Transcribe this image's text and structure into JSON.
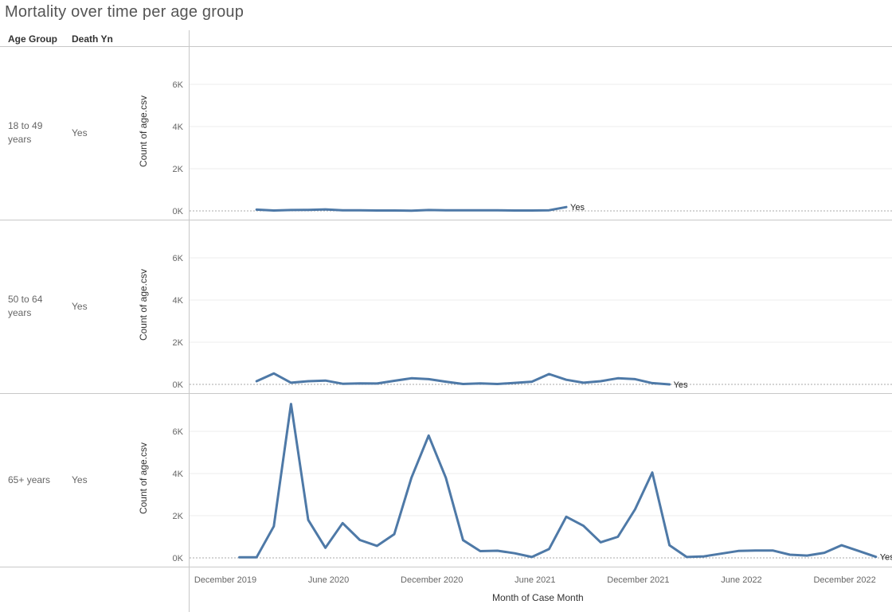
{
  "title": "Mortality over time per age group",
  "headers": {
    "age_group": "Age Group",
    "death_yn": "Death Yn"
  },
  "x_axis_title": "Month of Case Month",
  "colors": {
    "line": "#4e79a7",
    "grid": "#eeeeee",
    "zero": "#aaaaaa",
    "divider": "#c8c8c8"
  },
  "chart_data": {
    "type": "line",
    "title": "Mortality over time per age group",
    "xlabel": "Month of Case Month",
    "ylabel": "Count of age.csv",
    "ylim": [
      0,
      7500
    ],
    "y_ticks": [
      0,
      2000,
      4000,
      6000
    ],
    "y_tick_labels": [
      "0K",
      "2K",
      "4K",
      "6K"
    ],
    "x_ticks": [
      "2019-12",
      "2020-06",
      "2020-12",
      "2021-06",
      "2021-12",
      "2022-06",
      "2022-12"
    ],
    "x_tick_labels": [
      "December 2019",
      "June 2020",
      "December 2020",
      "June 2021",
      "December 2021",
      "June 2022",
      "December 2022"
    ],
    "x_range": [
      "2019-12",
      "2023-01"
    ],
    "grid": true,
    "panels": [
      {
        "age_group": "18 to 49 years",
        "death_yn": "Yes",
        "series_label": "Yes",
        "x": [
          "2020-02",
          "2020-03",
          "2020-04",
          "2020-05",
          "2020-06",
          "2020-07",
          "2020-08",
          "2020-09",
          "2020-10",
          "2020-11",
          "2020-12",
          "2021-01",
          "2021-02",
          "2021-03",
          "2021-04",
          "2021-05",
          "2021-06",
          "2021-07",
          "2021-08"
        ],
        "values": [
          60,
          20,
          40,
          50,
          70,
          30,
          30,
          20,
          20,
          10,
          40,
          30,
          30,
          30,
          30,
          20,
          20,
          30,
          180
        ]
      },
      {
        "age_group": "50 to 64 years",
        "death_yn": "Yes",
        "series_label": "Yes",
        "x": [
          "2020-02",
          "2020-03",
          "2020-04",
          "2020-05",
          "2020-06",
          "2020-07",
          "2020-08",
          "2020-09",
          "2020-10",
          "2020-11",
          "2020-12",
          "2021-01",
          "2021-02",
          "2021-03",
          "2021-04",
          "2021-05",
          "2021-06",
          "2021-07",
          "2021-08",
          "2021-09",
          "2021-10",
          "2021-11",
          "2021-12",
          "2022-01",
          "2022-02"
        ],
        "values": [
          150,
          520,
          80,
          150,
          180,
          30,
          50,
          40,
          170,
          290,
          250,
          130,
          20,
          50,
          20,
          70,
          130,
          490,
          220,
          80,
          150,
          290,
          250,
          60,
          0
        ]
      },
      {
        "age_group": "65+ years",
        "death_yn": "Yes",
        "series_label": "Yes",
        "x": [
          "2020-01",
          "2020-02",
          "2020-03",
          "2020-04",
          "2020-05",
          "2020-06",
          "2020-07",
          "2020-08",
          "2020-09",
          "2020-10",
          "2020-11",
          "2020-12",
          "2021-01",
          "2021-02",
          "2021-03",
          "2021-04",
          "2021-05",
          "2021-06",
          "2021-07",
          "2021-08",
          "2021-09",
          "2021-10",
          "2021-11",
          "2021-12",
          "2022-01",
          "2022-02",
          "2022-03",
          "2022-04",
          "2022-05",
          "2022-06",
          "2022-07",
          "2022-08",
          "2022-09",
          "2022-10",
          "2022-11",
          "2022-12",
          "2023-01",
          "2023-02"
        ],
        "values": [
          30,
          30,
          1500,
          7300,
          1800,
          480,
          1650,
          850,
          570,
          1120,
          3800,
          5800,
          3800,
          840,
          320,
          340,
          220,
          40,
          420,
          1950,
          1520,
          740,
          1000,
          2300,
          4050,
          600,
          40,
          70,
          200,
          330,
          350,
          350,
          150,
          110,
          240,
          600,
          330,
          50
        ]
      }
    ]
  }
}
